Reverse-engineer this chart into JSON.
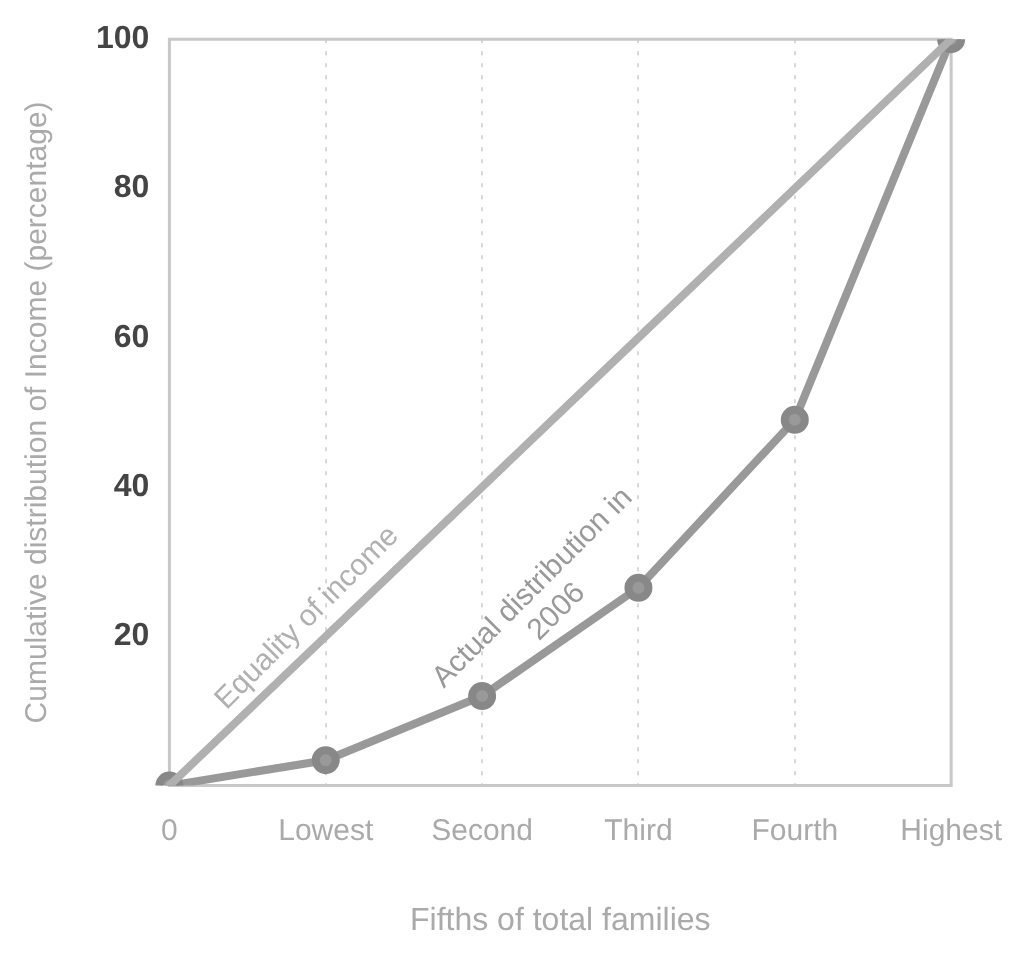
{
  "chart_data": {
    "type": "line",
    "xlabel": "Fifths of total families",
    "ylabel": "Cumulative distribution of Income (percentage)",
    "categories": [
      "0",
      "Lowest",
      "Second",
      "Third",
      "Fourth",
      "Highest"
    ],
    "series": [
      {
        "name": "Equality of income",
        "color": "#b0b0b0",
        "marker": "none",
        "values": [
          0,
          20,
          40,
          60,
          80,
          100
        ]
      },
      {
        "name": "Actual distribution in 2006",
        "color": "#999999",
        "marker": "circle",
        "values": [
          0,
          3.4,
          12,
          26.5,
          49,
          100
        ]
      }
    ],
    "ylim": [
      0,
      100
    ],
    "yticks": [
      20,
      40,
      60,
      80,
      100
    ],
    "grid": "x",
    "legend": false,
    "line_style": "solid"
  }
}
